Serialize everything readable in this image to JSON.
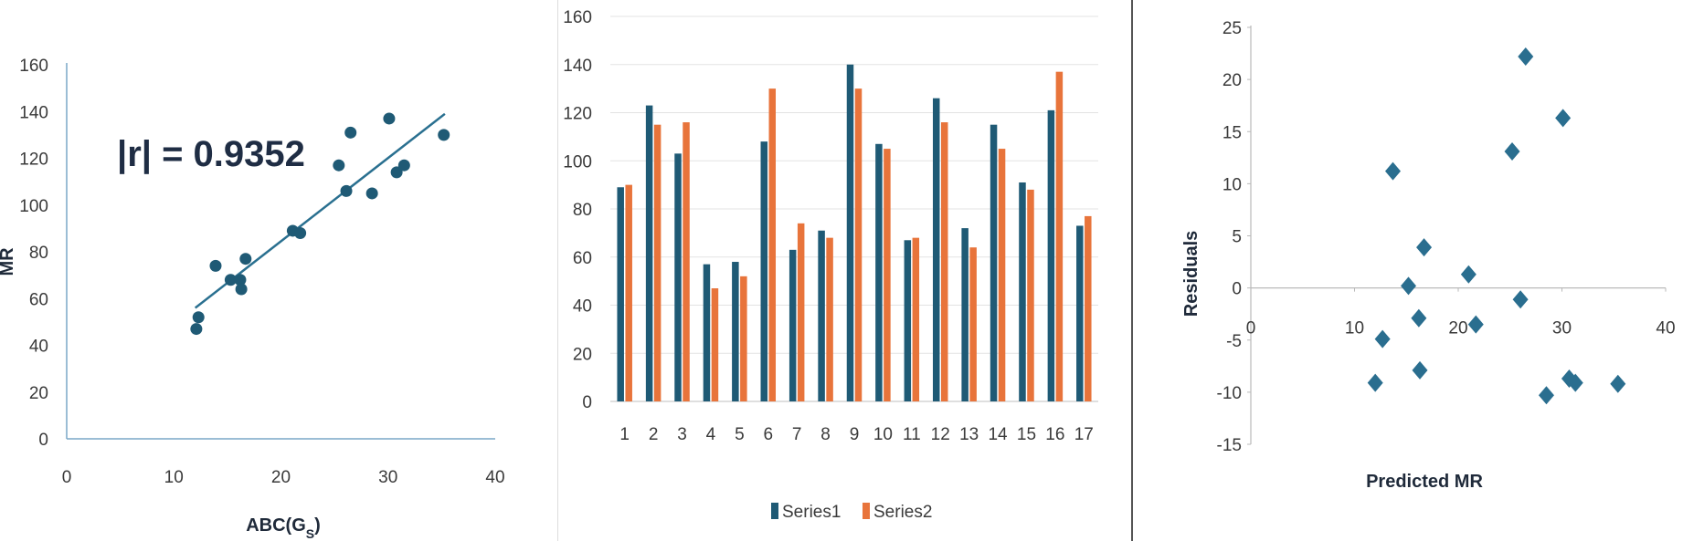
{
  "chart_data": [
    {
      "type": "scatter",
      "title": "",
      "xlabel": "ABC(G",
      "xlabel_sub": "S",
      "xlabel_end": ")",
      "ylabel": "MR",
      "annotation": "|r| = 0.9352",
      "xlim": [
        0,
        40
      ],
      "ylim": [
        0,
        160
      ],
      "xticks": [
        0,
        10,
        20,
        30,
        40
      ],
      "yticks": [
        0,
        20,
        40,
        60,
        80,
        100,
        120,
        140,
        160
      ],
      "grid": false,
      "point_color": "#1f5a75",
      "trendline": {
        "x": [
          12,
          35.3
        ],
        "y": [
          56,
          139
        ]
      },
      "points": [
        {
          "x": 12.1,
          "y": 47
        },
        {
          "x": 12.3,
          "y": 52
        },
        {
          "x": 13.9,
          "y": 74
        },
        {
          "x": 15.3,
          "y": 68
        },
        {
          "x": 16.2,
          "y": 68
        },
        {
          "x": 16.3,
          "y": 64
        },
        {
          "x": 16.7,
          "y": 77
        },
        {
          "x": 21.1,
          "y": 89
        },
        {
          "x": 21.8,
          "y": 88
        },
        {
          "x": 25.4,
          "y": 117
        },
        {
          "x": 26.1,
          "y": 106
        },
        {
          "x": 26.5,
          "y": 131
        },
        {
          "x": 28.5,
          "y": 105
        },
        {
          "x": 30.1,
          "y": 137
        },
        {
          "x": 30.8,
          "y": 114
        },
        {
          "x": 31.5,
          "y": 117
        },
        {
          "x": 35.2,
          "y": 130
        }
      ]
    },
    {
      "type": "bar",
      "title": "",
      "xlabel": "",
      "ylabel": "",
      "categories": [
        "1",
        "2",
        "3",
        "4",
        "5",
        "6",
        "7",
        "8",
        "9",
        "10",
        "11",
        "12",
        "13",
        "14",
        "15",
        "16",
        "17"
      ],
      "ylim": [
        0,
        160
      ],
      "yticks": [
        0,
        20,
        40,
        60,
        80,
        100,
        120,
        140,
        160
      ],
      "grid": true,
      "legend_position": "bottom",
      "series": [
        {
          "name": "Series1",
          "color": "#1f5a75",
          "values": [
            89,
            123,
            103,
            57,
            58,
            108,
            63,
            71,
            140,
            107,
            67,
            126,
            72,
            115,
            91,
            121,
            73
          ]
        },
        {
          "name": "Series2",
          "color": "#e8743b",
          "values": [
            90,
            115,
            116,
            47,
            52,
            130,
            74,
            68,
            130,
            105,
            68,
            116,
            64,
            105,
            88,
            137,
            77
          ]
        }
      ]
    },
    {
      "type": "scatter",
      "title": "",
      "xlabel": "Predicted MR",
      "ylabel": "Residuals",
      "xlim": [
        0,
        40
      ],
      "ylim": [
        -15,
        25
      ],
      "xticks": [
        0,
        10,
        20,
        30,
        40
      ],
      "yticks": [
        -15,
        -10,
        -5,
        0,
        5,
        10,
        15,
        20,
        25
      ],
      "grid": false,
      "marker": "diamond",
      "point_color": "#2a6e8f",
      "points": [
        {
          "x": 12,
          "y": -9.1
        },
        {
          "x": 12.7,
          "y": -4.9
        },
        {
          "x": 13.7,
          "y": 11.2
        },
        {
          "x": 15.2,
          "y": 0.2
        },
        {
          "x": 16.2,
          "y": -2.9
        },
        {
          "x": 16.3,
          "y": -7.9
        },
        {
          "x": 16.7,
          "y": 3.9
        },
        {
          "x": 21,
          "y": 1.3
        },
        {
          "x": 21.7,
          "y": -3.5
        },
        {
          "x": 25.2,
          "y": 13.1
        },
        {
          "x": 26,
          "y": -1.1
        },
        {
          "x": 26.5,
          "y": 22.2
        },
        {
          "x": 28.5,
          "y": -10.3
        },
        {
          "x": 30.1,
          "y": 16.3
        },
        {
          "x": 30.7,
          "y": -8.7
        },
        {
          "x": 31.3,
          "y": -9.1
        },
        {
          "x": 35.4,
          "y": -9.2
        }
      ]
    }
  ]
}
